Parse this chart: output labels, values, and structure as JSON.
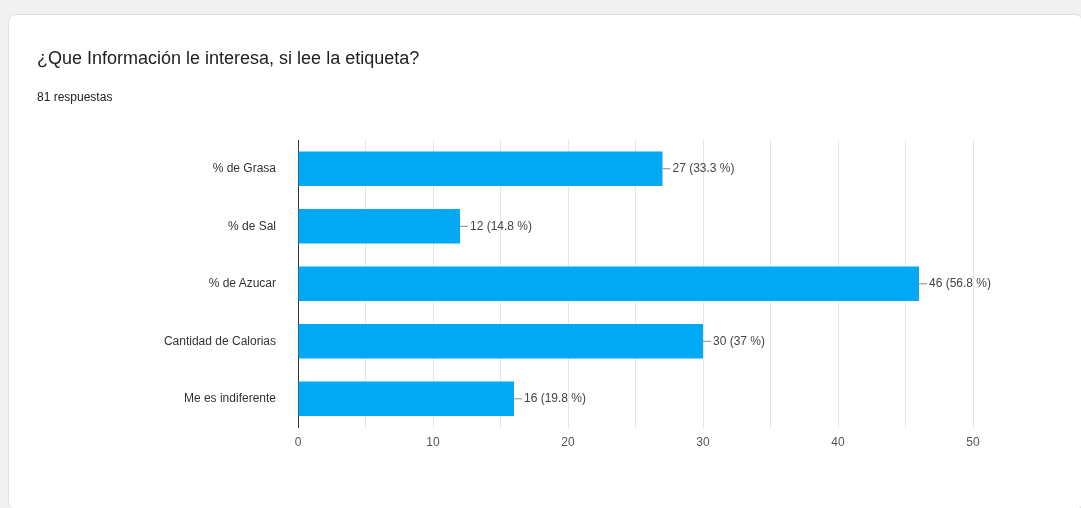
{
  "chart_data": {
    "type": "bar",
    "orientation": "horizontal",
    "title": "¿Que Información le interesa, si lee la etiqueta?",
    "subtitle": "81 respuestas",
    "categories": [
      "% de Grasa",
      "% de Sal",
      "% de Azucar",
      "Cantidad de Calorias",
      "Me es indiferente"
    ],
    "values": [
      27,
      12,
      46,
      30,
      16
    ],
    "value_labels": [
      "27 (33.3 %)",
      "12 (14.8 %)",
      "46 (56.8 %)",
      "30 (37 %)",
      "16 (19.8 %)"
    ],
    "color": "#03a9f4",
    "xlim": [
      0,
      50
    ],
    "xticks": [
      0,
      {
        "value": 5,
        "label": null
      },
      10,
      {
        "value": 15,
        "label": null
      },
      20,
      {
        "value": 25,
        "label": null
      },
      30,
      {
        "value": 35,
        "label": null
      },
      40,
      {
        "value": 45,
        "label": null
      },
      50
    ],
    "grid": "x",
    "legend": false
  }
}
